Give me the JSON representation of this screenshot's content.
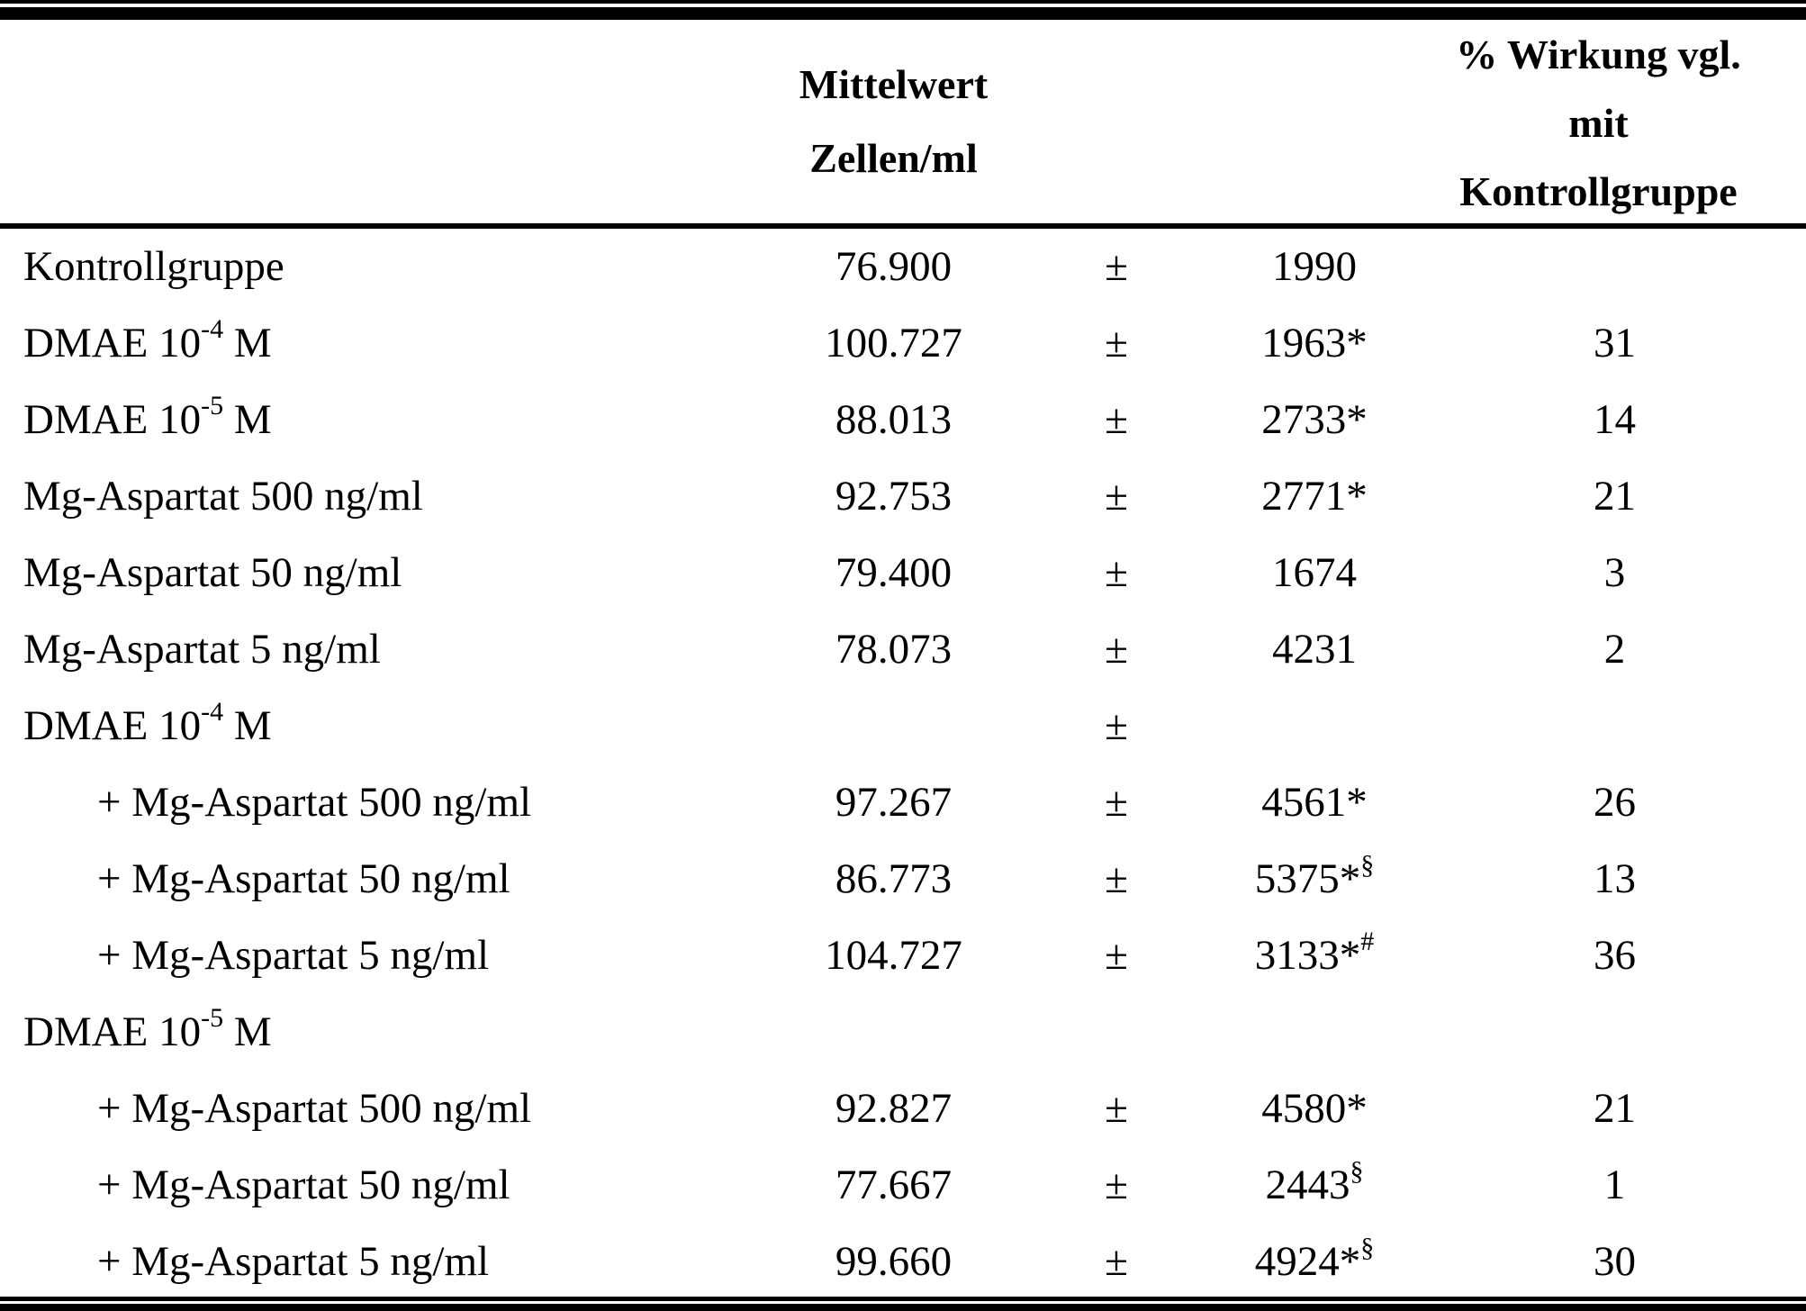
{
  "colors": {
    "text": "#000000",
    "background": "#ffffff",
    "rule": "#000000"
  },
  "table": {
    "header": {
      "mean": [
        "Mittelwert",
        "Zellen/ml"
      ],
      "effect": [
        "% Wirkung vgl.",
        "mit",
        "Kontrollgruppe"
      ]
    },
    "rows": [
      {
        "pre": "Kontrollgruppe",
        "sup": "",
        "post": "",
        "indent": false,
        "mean": "76.900",
        "pm": "±",
        "sd": "1990",
        "sd_sup": "",
        "pct": ""
      },
      {
        "pre": "DMAE 10",
        "sup": "-4",
        "post": " M",
        "indent": false,
        "mean": "100.727",
        "pm": "±",
        "sd": "1963*",
        "sd_sup": "",
        "pct": "31"
      },
      {
        "pre": "DMAE 10",
        "sup": "-5",
        "post": " M",
        "indent": false,
        "mean": "88.013",
        "pm": "±",
        "sd": "2733*",
        "sd_sup": "",
        "pct": "14"
      },
      {
        "pre": "Mg-Aspartat 500 ng/ml",
        "sup": "",
        "post": "",
        "indent": false,
        "mean": "92.753",
        "pm": "±",
        "sd": "2771*",
        "sd_sup": "",
        "pct": "21"
      },
      {
        "pre": "Mg-Aspartat 50 ng/ml",
        "sup": "",
        "post": "",
        "indent": false,
        "mean": "79.400",
        "pm": "±",
        "sd": "1674",
        "sd_sup": "",
        "pct": "3"
      },
      {
        "pre": "Mg-Aspartat 5 ng/ml",
        "sup": "",
        "post": "",
        "indent": false,
        "mean": "78.073",
        "pm": "±",
        "sd": "4231",
        "sd_sup": "",
        "pct": "2"
      },
      {
        "pre": "DMAE 10",
        "sup": "-4",
        "post": " M",
        "indent": false,
        "mean": "",
        "pm": "±",
        "sd": "",
        "sd_sup": "",
        "pct": ""
      },
      {
        "pre": "+ Mg-Aspartat 500 ng/ml",
        "sup": "",
        "post": "",
        "indent": true,
        "mean": "97.267",
        "pm": "±",
        "sd": "4561*",
        "sd_sup": "",
        "pct": "26"
      },
      {
        "pre": "+ Mg-Aspartat 50 ng/ml",
        "sup": "",
        "post": "",
        "indent": true,
        "mean": "86.773",
        "pm": "±",
        "sd": "5375*",
        "sd_sup": "§",
        "pct": "13"
      },
      {
        "pre": "+ Mg-Aspartat 5 ng/ml",
        "sup": "",
        "post": "",
        "indent": true,
        "mean": "104.727",
        "pm": "±",
        "sd": "3133*",
        "sd_sup": "#",
        "pct": "36"
      },
      {
        "pre": "DMAE 10",
        "sup": "-5",
        "post": " M",
        "indent": false,
        "mean": "",
        "pm": "",
        "sd": "",
        "sd_sup": "",
        "pct": ""
      },
      {
        "pre": "+ Mg-Aspartat 500 ng/ml",
        "sup": "",
        "post": "",
        "indent": true,
        "mean": "92.827",
        "pm": "±",
        "sd": "4580*",
        "sd_sup": "",
        "pct": "21"
      },
      {
        "pre": "+ Mg-Aspartat 50 ng/ml",
        "sup": "",
        "post": "",
        "indent": true,
        "mean": "77.667",
        "pm": "±",
        "sd": "2443",
        "sd_sup": "§",
        "pct": "1"
      },
      {
        "pre": "+ Mg-Aspartat 5 ng/ml",
        "sup": "",
        "post": "",
        "indent": true,
        "mean": "99.660",
        "pm": "±",
        "sd": "4924*",
        "sd_sup": "§",
        "pct": "30"
      }
    ]
  }
}
